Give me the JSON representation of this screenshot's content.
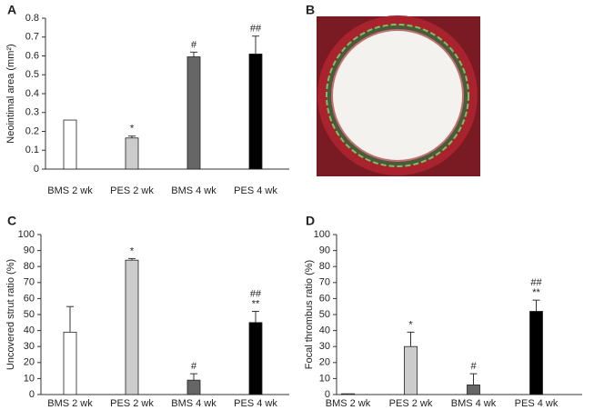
{
  "chart_data": [
    {
      "type": "bar",
      "panel_label": "A",
      "ylabel": "Neointimal area (mm²)",
      "categories": [
        "BMS 2 wk",
        "PES 2 wk",
        "BMS 4 wk",
        "PES 4 wk"
      ],
      "values": [
        0.26,
        0.165,
        0.595,
        0.61
      ],
      "errors": [
        0,
        0.01,
        0.025,
        0.095
      ],
      "colors": [
        "#ffffff",
        "#cccccc",
        "#666666",
        "#000000"
      ],
      "annotations": [
        null,
        [
          "*"
        ],
        [
          "#"
        ],
        [
          "##"
        ]
      ],
      "ylim": [
        0,
        0.8
      ],
      "yticks": [
        0,
        0.1,
        0.2,
        0.3,
        0.4,
        0.5,
        0.6,
        0.7,
        0.8
      ]
    },
    {
      "type": "bar",
      "panel_label": "C",
      "ylabel": "Uncovered strut ratio (%)",
      "categories": [
        "BMS 2 wk",
        "PES 2 wk",
        "BMS 4 wk",
        "PES 4 wk"
      ],
      "values": [
        39,
        84,
        9,
        45
      ],
      "errors": [
        16,
        1,
        4,
        7
      ],
      "colors": [
        "#ffffff",
        "#cccccc",
        "#666666",
        "#000000"
      ],
      "annotations": [
        null,
        [
          "*"
        ],
        [
          "#"
        ],
        [
          "##",
          "**"
        ]
      ],
      "ylim": [
        0,
        100
      ],
      "yticks": [
        0,
        10,
        20,
        30,
        40,
        50,
        60,
        70,
        80,
        90,
        100
      ]
    },
    {
      "type": "bar",
      "panel_label": "D",
      "ylabel": "Focal thrombus ratio (%)",
      "categories": [
        "BMS 2 wk",
        "PES 2 wk",
        "BMS 4 wk",
        "PES 4 wk"
      ],
      "values": [
        0.5,
        30,
        6,
        52
      ],
      "errors": [
        0,
        9,
        7,
        7
      ],
      "colors": [
        "#ffffff",
        "#cccccc",
        "#666666",
        "#000000"
      ],
      "annotations": [
        null,
        [
          "*"
        ],
        [
          "#"
        ],
        [
          "##",
          "**"
        ]
      ],
      "ylim": [
        0,
        100
      ],
      "yticks": [
        0,
        10,
        20,
        30,
        40,
        50,
        60,
        70,
        80,
        90,
        100
      ]
    }
  ],
  "image_panel": {
    "label": "B"
  }
}
